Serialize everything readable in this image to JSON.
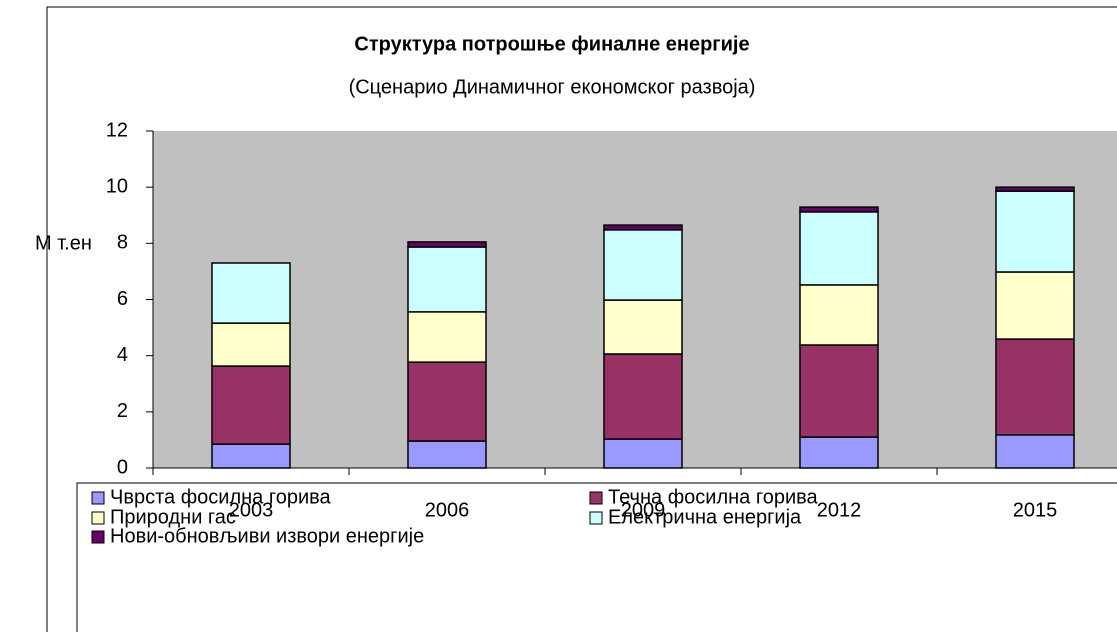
{
  "chart_data": {
    "type": "stacked_bar",
    "title": "Структура потрошње финалне енергије",
    "subtitle": "(Сценарио Динамичног економског развоја)",
    "y_label": "М т.ен",
    "categories": [
      "2003",
      "2006",
      "2009",
      "2012",
      "2015"
    ],
    "series": [
      {
        "name": "Чврста фосилна горива",
        "color": "#9999ff",
        "values": [
          0.85,
          0.96,
          1.03,
          1.1,
          1.18
        ]
      },
      {
        "name": "Течна фосилна горива",
        "color": "#993366",
        "values": [
          2.78,
          2.81,
          3.03,
          3.28,
          3.41
        ]
      },
      {
        "name": "Природни гас",
        "color": "#ffffcc",
        "values": [
          1.53,
          1.79,
          1.92,
          2.14,
          2.39
        ]
      },
      {
        "name": "Електрична енергија",
        "color": "#ccffff",
        "values": [
          2.14,
          2.31,
          2.5,
          2.6,
          2.88
        ]
      },
      {
        "name": "Нови-обновљиви извори енергије",
        "color": "#660066",
        "values": [
          0,
          0.18,
          0.17,
          0.17,
          0.14
        ]
      }
    ],
    "ylim": [
      0,
      12
    ],
    "yticks": [
      0,
      2,
      4,
      6,
      8,
      10,
      12
    ],
    "plot_background": "#c0c0c0"
  }
}
